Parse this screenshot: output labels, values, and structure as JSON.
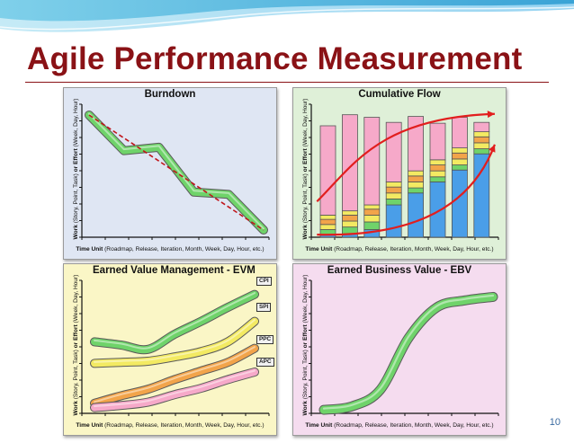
{
  "slide": {
    "title": "Agile Performance Measurement",
    "page_number": "10"
  },
  "axis": {
    "y_bold": "Work",
    "y_rest": " (Story, Point, Task) ",
    "y_bold2": "or Effort",
    "y_tail": " (Week, Day, Hour)",
    "x_bold": "Time Unit",
    "x_rest": " (Roadmap, Release, Iteration, Month, Week, Day, Hour, etc.)"
  },
  "colors": {
    "title": "#8a1216",
    "burndown_bg": "#dfe6f3",
    "cumflow_bg": "#dff0d8",
    "evm_bg": "#faf6c6",
    "ebv_bg": "#f5dcef",
    "green": "#6fd36a",
    "blue": "#4a9ee8",
    "yellow": "#f3ea62",
    "orange": "#f2a44a",
    "pink": "#f6a9c9",
    "red": "#e21e1e"
  },
  "chart_data": [
    {
      "type": "line",
      "title": "Burndown",
      "series": [
        {
          "values": [
            10,
            6.9,
            7.2,
            3.3,
            3.1,
            0
          ]
        },
        {
          "values": [
            10,
            8,
            6,
            4,
            2,
            0
          ]
        }
      ],
      "x": [
        0,
        1,
        2,
        3,
        4,
        5
      ],
      "ylim": [
        0,
        10
      ],
      "grid": false
    },
    {
      "type": "bar",
      "title": "Cumulative Flow",
      "stacked": true,
      "categories": [
        1,
        2,
        3,
        4,
        5,
        6,
        7,
        8
      ],
      "series": [
        {
          "values": [
            0.3,
            0.4,
            0.9,
            3.8,
            5.2,
            6.5,
            7.9,
            9.8
          ]
        },
        {
          "values": [
            0.6,
            0.8,
            0.9,
            0.7,
            0.6,
            0.6,
            0.6,
            0.6
          ]
        },
        {
          "values": [
            0.6,
            0.7,
            0.8,
            0.7,
            0.7,
            0.7,
            0.7,
            0.7
          ]
        },
        {
          "values": [
            0.6,
            0.7,
            0.7,
            0.7,
            0.7,
            0.7,
            0.7,
            0.7
          ]
        },
        {
          "values": [
            0.5,
            0.5,
            0.5,
            0.6,
            0.6,
            0.6,
            0.6,
            0.6
          ]
        },
        {
          "values": [
            10.5,
            11.3,
            10.3,
            7.0,
            6.4,
            4.3,
            3.6,
            1.1
          ]
        }
      ],
      "trend_lines": [
        {
          "x": [
            0.5,
            8.6
          ],
          "y": [
            4.2,
            14.5
          ]
        },
        {
          "x": [
            0.5,
            8.6
          ],
          "y": [
            0.3,
            10.9
          ]
        }
      ],
      "ylim": [
        0,
        15
      ]
    },
    {
      "type": "line",
      "title": "Earned Value Management - EVM",
      "x": [
        0,
        1,
        2,
        3,
        4,
        5,
        6
      ],
      "series": [
        {
          "name": "CPI",
          "values": [
            6.3,
            6.0,
            5.6,
            7.0,
            8.2,
            9.5,
            10.7
          ]
        },
        {
          "name": "SPI",
          "values": [
            4.3,
            4.4,
            4.5,
            4.9,
            5.4,
            6.3,
            8.2
          ]
        },
        {
          "name": "PPC",
          "values": [
            0.6,
            1.3,
            1.9,
            2.8,
            3.6,
            4.4,
            5.7
          ]
        },
        {
          "name": "APC",
          "values": [
            0.2,
            0.4,
            0.7,
            1.4,
            2.0,
            2.8,
            3.5
          ]
        }
      ],
      "ylim": [
        0,
        12
      ]
    },
    {
      "type": "line",
      "title": "Earned Business Value - EBV",
      "x": [
        0,
        1,
        2,
        3,
        4,
        5,
        6
      ],
      "series": [
        {
          "values": [
            0.3,
            0.6,
            2.0,
            6.4,
            9.0,
            9.6,
            9.9
          ]
        }
      ],
      "ylim": [
        0,
        11
      ]
    }
  ]
}
